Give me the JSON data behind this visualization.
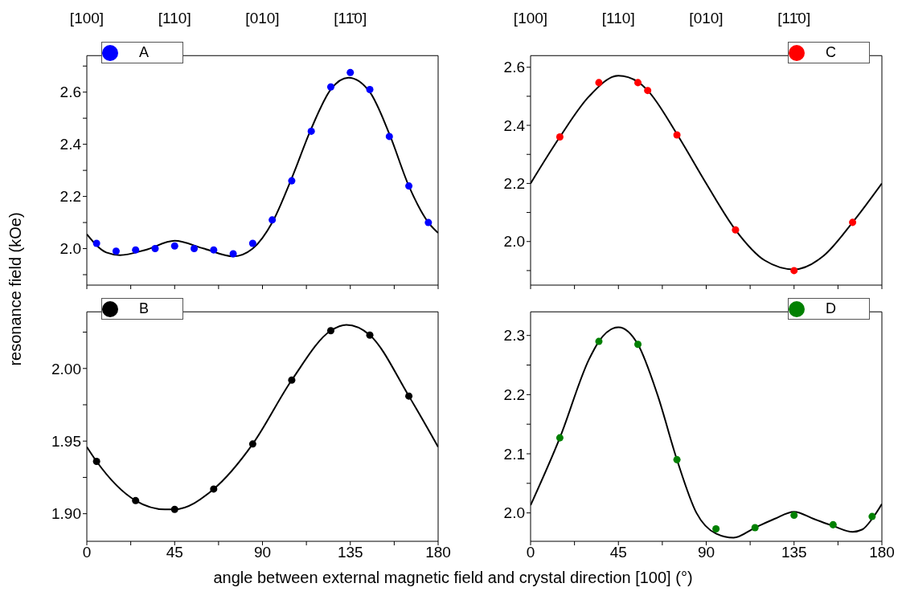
{
  "chart_data": [
    {
      "type": "scatter",
      "ylabel": "resonance field (kOe)",
      "legend": "top left",
      "tick_labels": "y",
      "annotations": [
        "[100]",
        "[110]",
        "[010]",
        "[11̄0]"
      ],
      "xlim": [
        0,
        180
      ],
      "xticks": [
        0,
        {
          "value": 22.5,
          "label": null
        },
        45,
        {
          "value": 67.5,
          "label": null
        },
        90,
        {
          "value": 112.5,
          "label": null
        },
        135,
        {
          "value": 157.5,
          "label": null
        },
        180
      ],
      "ylim": [
        1.86,
        2.74
      ],
      "yticks": [
        {
          "value": 1.9,
          "label": null
        },
        {
          "value": 2.0,
          "label": "2.0"
        },
        {
          "value": 2.1,
          "label": null
        },
        {
          "value": 2.2,
          "label": "2.2"
        },
        {
          "value": 2.3,
          "label": null
        },
        {
          "value": 2.4,
          "label": "2.4"
        },
        {
          "value": 2.5,
          "label": null
        },
        {
          "value": 2.6,
          "label": "2.6"
        },
        {
          "value": 2.7,
          "label": null
        }
      ],
      "series": [
        {
          "name": "A",
          "color": "#0000ff",
          "marker": "circle",
          "x": [
            5,
            15,
            25,
            35,
            45,
            55,
            65,
            75,
            85,
            95,
            105,
            115,
            125,
            135,
            145,
            155,
            165,
            175
          ],
          "values": [
            2.02,
            1.99,
            1.995,
            2.0,
            2.01,
            2.0,
            1.995,
            1.98,
            2.02,
            2.11,
            2.26,
            2.45,
            2.62,
            2.675,
            2.61,
            2.43,
            2.24,
            2.1
          ]
        },
        {
          "type": "line",
          "color": "#000000",
          "marker": "none",
          "line_style": "solid",
          "x": [
            0,
            10,
            17,
            30,
            45,
            60,
            75,
            85,
            95,
            105,
            115,
            125,
            134,
            145,
            155,
            165,
            175,
            180
          ],
          "values": [
            2.055,
            1.985,
            1.975,
            1.995,
            2.03,
            2.0,
            1.97,
            2.0,
            2.1,
            2.27,
            2.46,
            2.61,
            2.655,
            2.6,
            2.44,
            2.24,
            2.1,
            2.06
          ]
        }
      ]
    },
    {
      "type": "scatter",
      "legend": "top right",
      "tick_labels": "y",
      "annotations": [
        "[100]",
        "[110]",
        "[010]",
        "[11̄0]"
      ],
      "xlim": [
        0,
        180
      ],
      "xticks": [
        0,
        {
          "value": 22.5,
          "label": null
        },
        45,
        {
          "value": 67.5,
          "label": null
        },
        90,
        {
          "value": 112.5,
          "label": null
        },
        135,
        {
          "value": 157.5,
          "label": null
        },
        180
      ],
      "ylim": [
        1.85,
        2.64
      ],
      "yticks": [
        {
          "value": 1.9,
          "label": null
        },
        {
          "value": 2.0,
          "label": "2.0"
        },
        {
          "value": 2.1,
          "label": null
        },
        {
          "value": 2.2,
          "label": "2.2"
        },
        {
          "value": 2.3,
          "label": null
        },
        {
          "value": 2.4,
          "label": "2.4"
        },
        {
          "value": 2.5,
          "label": null
        },
        {
          "value": 2.6,
          "label": "2.6"
        }
      ],
      "series": [
        {
          "name": "C",
          "color": "#ff0000",
          "marker": "circle",
          "x": [
            15,
            35,
            55,
            60,
            75,
            105,
            135,
            165
          ],
          "values": [
            2.36,
            2.547,
            2.547,
            2.52,
            2.367,
            2.04,
            1.9,
            2.066
          ]
        },
        {
          "type": "line",
          "color": "#000000",
          "marker": "none",
          "line_style": "solid",
          "x": [
            0,
            15,
            30,
            45,
            55,
            60,
            75,
            90,
            105,
            120,
            135,
            150,
            165,
            180
          ],
          "values": [
            2.2,
            2.36,
            2.5,
            2.571,
            2.55,
            2.52,
            2.37,
            2.2,
            2.04,
            1.935,
            1.904,
            1.95,
            2.066,
            2.2
          ]
        }
      ]
    },
    {
      "type": "scatter",
      "xlabel": "angle between external magnetic field and crystal direction [100] (°)",
      "legend": "top left",
      "xlim": [
        0,
        180
      ],
      "xticks": [
        0,
        {
          "value": 22.5,
          "label": null
        },
        45,
        {
          "value": 67.5,
          "label": null
        },
        90,
        {
          "value": 112.5,
          "label": null
        },
        135,
        {
          "value": 157.5,
          "label": null
        },
        180
      ],
      "ylim": [
        1.881,
        2.039
      ],
      "yticks": [
        {
          "value": 1.9,
          "label": "1.90"
        },
        {
          "value": 1.925,
          "label": null
        },
        {
          "value": 1.95,
          "label": "1.95"
        },
        {
          "value": 1.975,
          "label": null
        },
        {
          "value": 2.0,
          "label": "2.00"
        },
        {
          "value": 2.025,
          "label": null
        }
      ],
      "series": [
        {
          "name": "B",
          "color": "#000000",
          "marker": "circle",
          "x": [
            5,
            25,
            45,
            65,
            85,
            105,
            125,
            145,
            165
          ],
          "values": [
            1.936,
            1.909,
            1.903,
            1.917,
            1.948,
            1.992,
            2.026,
            2.023,
            1.981
          ]
        },
        {
          "type": "line",
          "color": "#000000",
          "marker": "none",
          "line_style": "solid",
          "x": [
            0,
            5,
            25,
            40,
            45,
            65,
            85,
            105,
            125,
            133,
            145,
            165,
            180
          ],
          "values": [
            1.946,
            1.936,
            1.909,
            1.903,
            1.903,
            1.917,
            1.948,
            1.992,
            2.026,
            2.03,
            2.023,
            1.981,
            1.946
          ]
        }
      ]
    },
    {
      "type": "scatter",
      "legend": "top right",
      "xlim": [
        0,
        180
      ],
      "xticks": [
        0,
        {
          "value": 22.5,
          "label": null
        },
        45,
        {
          "value": 67.5,
          "label": null
        },
        90,
        {
          "value": 112.5,
          "label": null
        },
        135,
        {
          "value": 157.5,
          "label": null
        },
        180
      ],
      "ylim": [
        1.952,
        2.34
      ],
      "yticks": [
        {
          "value": 2.0,
          "label": "2.0"
        },
        {
          "value": 2.05,
          "label": null
        },
        {
          "value": 2.1,
          "label": "2.1"
        },
        {
          "value": 2.15,
          "label": null
        },
        {
          "value": 2.2,
          "label": "2.2"
        },
        {
          "value": 2.25,
          "label": null
        },
        {
          "value": 2.3,
          "label": "2.3"
        }
      ],
      "series": [
        {
          "name": "D",
          "color": "#008000",
          "marker": "circle",
          "x": [
            15,
            35,
            55,
            75,
            95,
            115,
            135,
            155,
            175
          ],
          "values": [
            2.127,
            2.29,
            2.285,
            2.09,
            1.973,
            1.975,
            1.996,
            1.98,
            1.994
          ]
        },
        {
          "type": "line",
          "color": "#000000",
          "marker": "none",
          "line_style": "solid",
          "x": [
            0,
            15,
            30,
            35,
            45,
            55,
            65,
            75,
            85,
            95,
            104,
            115,
            125,
            135,
            145,
            155,
            165,
            170,
            175,
            180
          ],
          "values": [
            2.013,
            2.127,
            2.26,
            2.29,
            2.314,
            2.285,
            2.2,
            2.09,
            2.0,
            1.965,
            1.958,
            1.975,
            1.99,
            2.002,
            1.99,
            1.978,
            1.968,
            1.972,
            1.99,
            2.015
          ]
        }
      ]
    }
  ]
}
